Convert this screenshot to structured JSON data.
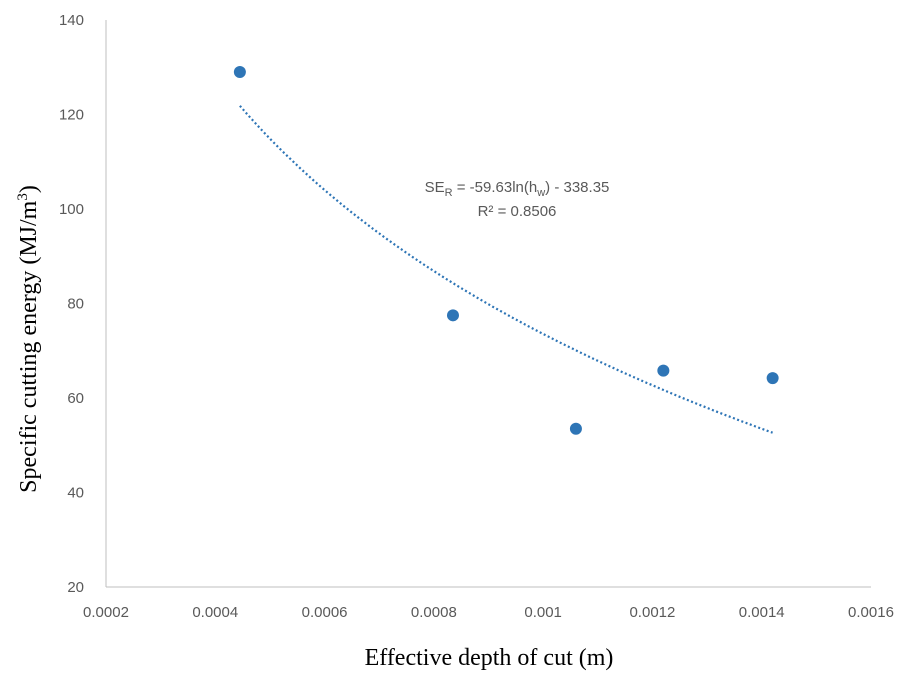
{
  "chart_data": {
    "type": "scatter",
    "xlabel": "Effective depth of cut (m)",
    "ylabel_main": "Specific cutting energy (MJ/m",
    "ylabel_sup": "3",
    "ylabel_close": ")",
    "xlim": [
      0.0002,
      0.0016
    ],
    "ylim": [
      20,
      140
    ],
    "x_ticks": [
      0.0002,
      0.0004,
      0.0006,
      0.0008,
      0.001,
      0.0012,
      0.0014,
      0.0016
    ],
    "x_tick_labels": [
      "0.0002",
      "0.0004",
      "0.0006",
      "0.0008",
      "0.001",
      "0.0012",
      "0.0014",
      "0.0016"
    ],
    "y_ticks": [
      20,
      40,
      60,
      80,
      100,
      120,
      140
    ],
    "y_tick_labels": [
      "20",
      "40",
      "60",
      "80",
      "100",
      "120",
      "140"
    ],
    "grid": false,
    "legend": "none",
    "points": [
      {
        "x": 0.000445,
        "y": 129
      },
      {
        "x": 0.000835,
        "y": 77.5
      },
      {
        "x": 0.00106,
        "y": 53.5
      },
      {
        "x": 0.00122,
        "y": 65.8
      },
      {
        "x": 0.00142,
        "y": 64.2
      }
    ],
    "trendline": {
      "type": "logarithmic",
      "a": -59.63,
      "b": -338.35,
      "x_from": 0.000445,
      "x_to": 0.00142
    },
    "equation": {
      "line1_prefix": "SE",
      "line1_sub1": "R",
      "line1_mid": " = -59.63ln(h",
      "line1_sub2": "w",
      "line1_end": ") - 338.35",
      "line2": "R² = 0.8506"
    },
    "colors": {
      "marker": "#2e75b6",
      "trendline": "#2e75b6",
      "axis": "#bfbfbf"
    }
  }
}
